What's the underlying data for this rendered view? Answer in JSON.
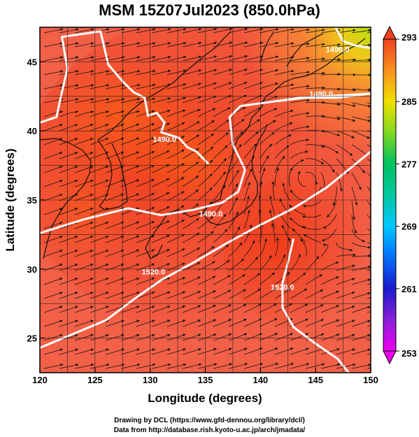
{
  "title": "MSM 15Z07Jul2023 (850.0hPa)",
  "xlabel": "Longitude (degrees)",
  "ylabel": "Latitude  (degrees)",
  "credits": [
    "Drawing by DCL (https://www.gfd-dennou.org/library/dcl/)",
    "Data from http://database.rish.kyoto-u.ac.jp/arch/jmadata/"
  ],
  "chart_data": {
    "type": "heatmap",
    "variable_units": "hPa",
    "xlim": [
      120,
      150
    ],
    "ylim": [
      22.5,
      47.5
    ],
    "x_ticks": [
      120,
      125,
      130,
      135,
      140,
      145,
      150
    ],
    "y_ticks": [
      25,
      30,
      35,
      40,
      45
    ],
    "grid": true,
    "colorbar": {
      "min": 253,
      "max": 293,
      "tick_values": [
        253,
        261,
        269,
        277,
        285,
        293
      ],
      "colors": [
        "#ee00ee",
        "#1a1acc",
        "#00c8ff",
        "#00c060",
        "#f0e000",
        "#f04020"
      ]
    },
    "contours": [
      {
        "label": "1490.0",
        "label_at": [
          135.5,
          33.8
        ],
        "points": [
          [
            120,
            32.6
          ],
          [
            124,
            33.6
          ],
          [
            128,
            34.4
          ],
          [
            131,
            33.9
          ],
          [
            134,
            34.3
          ],
          [
            136.5,
            34.8
          ],
          [
            138,
            35.6
          ],
          [
            138.6,
            37.2
          ],
          [
            137.5,
            39
          ],
          [
            137.2,
            41
          ],
          [
            138.2,
            41.8
          ],
          [
            141,
            42.1
          ],
          [
            144,
            42.4
          ],
          [
            147,
            42.4
          ],
          [
            150,
            42.7
          ]
        ]
      },
      {
        "label": "1490.0",
        "label_at": [
          145.5,
          42.5
        ],
        "points": [
          [
            141,
            42.1
          ],
          [
            143.5,
            42.4
          ],
          [
            146,
            42.5
          ],
          [
            150,
            42.7
          ]
        ]
      },
      {
        "label": "1490.0",
        "label_at": [
          131.3,
          39.2
        ],
        "points": [
          [
            120,
            40.6
          ],
          [
            121.5,
            41
          ],
          [
            122,
            42.8
          ],
          [
            122.5,
            44.5
          ],
          [
            122,
            46.8
          ],
          [
            125.5,
            47.2
          ],
          [
            126.2,
            44.8
          ],
          [
            127.6,
            43.5
          ],
          [
            128.5,
            42.8
          ],
          [
            129.5,
            42.4
          ],
          [
            129.8,
            41.1
          ],
          [
            130.6,
            41.3
          ],
          [
            131.3,
            40.6
          ],
          [
            131,
            39.9
          ],
          [
            132.6,
            39.5
          ],
          [
            133.4,
            38.8
          ],
          [
            134.2,
            38.5
          ],
          [
            135.3,
            37.6
          ]
        ]
      },
      {
        "label": "1490.0",
        "label_at": [
          147,
          45.7
        ],
        "points": [
          [
            146.8,
            47.5
          ],
          [
            147.5,
            46.5
          ],
          [
            148.5,
            46.2
          ],
          [
            150,
            46
          ]
        ]
      },
      {
        "label": "1520.0",
        "label_at": [
          130.3,
          29.6
        ],
        "points": [
          [
            120,
            24.3
          ],
          [
            123,
            25.3
          ],
          [
            126,
            26.3
          ],
          [
            128.5,
            27.8
          ],
          [
            131,
            29.2
          ],
          [
            134,
            30.5
          ],
          [
            137,
            31.9
          ],
          [
            140,
            33.2
          ],
          [
            143,
            34.4
          ],
          [
            146,
            35.9
          ],
          [
            148,
            37.2
          ],
          [
            150,
            38.5
          ]
        ]
      },
      {
        "label": "1520.0",
        "label_at": [
          142,
          28.5
        ],
        "points": [
          [
            143,
            32.2
          ],
          [
            142.5,
            30.5
          ],
          [
            142,
            29
          ],
          [
            142,
            27.2
          ],
          [
            143,
            25.8
          ],
          [
            145,
            24.6
          ],
          [
            147,
            23.5
          ],
          [
            148,
            22.5
          ]
        ]
      }
    ]
  }
}
